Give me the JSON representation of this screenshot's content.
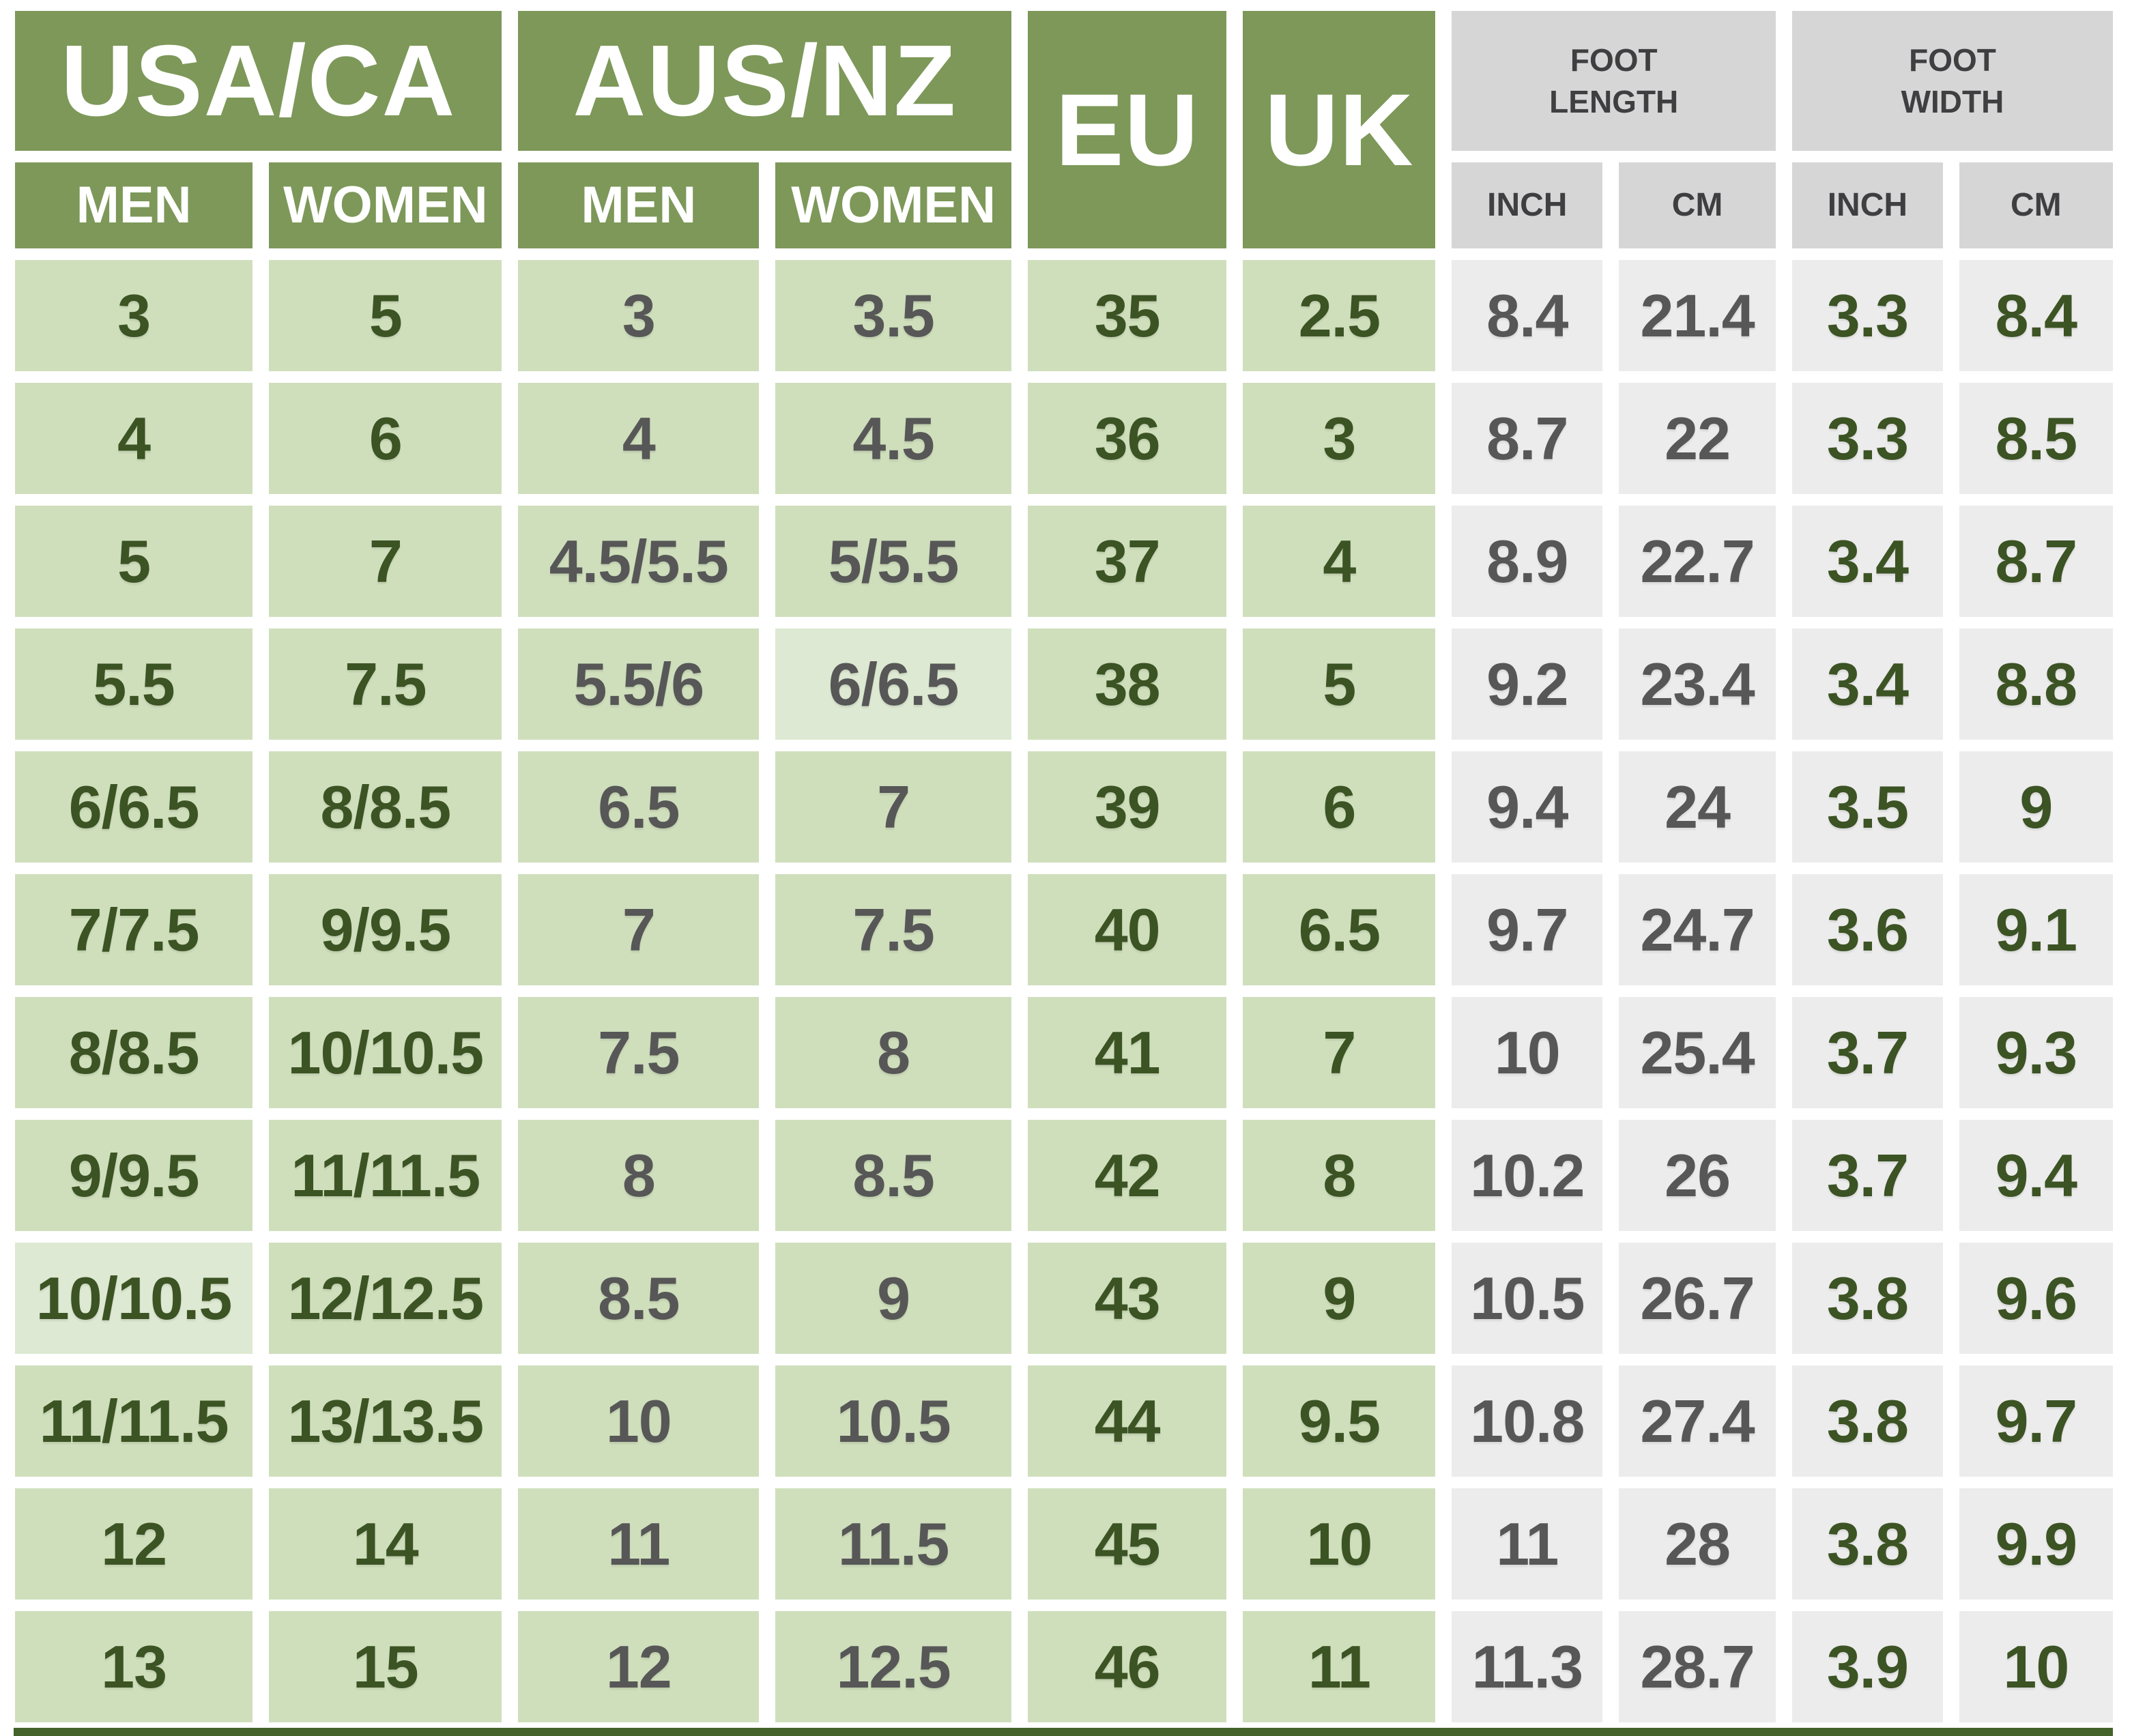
{
  "chart_data": {
    "type": "table",
    "title": "",
    "column_groups": [
      {
        "label": "USA/CA",
        "columns": [
          "MEN",
          "WOMEN"
        ]
      },
      {
        "label": "AUS/NZ",
        "columns": [
          "MEN",
          "WOMEN"
        ]
      },
      {
        "label": "EU",
        "columns": []
      },
      {
        "label": "UK",
        "columns": []
      },
      {
        "label": "FOOT LENGTH",
        "columns": [
          "INCH",
          "CM"
        ]
      },
      {
        "label": "FOOT WIDTH",
        "columns": [
          "INCH",
          "CM"
        ]
      }
    ],
    "flat_columns": [
      "USA/CA MEN",
      "USA/CA WOMEN",
      "AUS/NZ MEN",
      "AUS/NZ WOMEN",
      "EU",
      "UK",
      "FOOT LENGTH INCH",
      "FOOT LENGTH CM",
      "FOOT WIDTH INCH",
      "FOOT WIDTH CM"
    ],
    "rows": [
      [
        "3",
        "5",
        "3",
        "3.5",
        "35",
        "2.5",
        "8.4",
        "21.4",
        "3.3",
        "8.4"
      ],
      [
        "4",
        "6",
        "4",
        "4.5",
        "36",
        "3",
        "8.7",
        "22",
        "3.3",
        "8.5"
      ],
      [
        "5",
        "7",
        "4.5/5.5",
        "5/5.5",
        "37",
        "4",
        "8.9",
        "22.7",
        "3.4",
        "8.7"
      ],
      [
        "5.5",
        "7.5",
        "5.5/6",
        "6/6.5",
        "38",
        "5",
        "9.2",
        "23.4",
        "3.4",
        "8.8"
      ],
      [
        "6/6.5",
        "8/8.5",
        "6.5",
        "7",
        "39",
        "6",
        "9.4",
        "24",
        "3.5",
        "9"
      ],
      [
        "7/7.5",
        "9/9.5",
        "7",
        "7.5",
        "40",
        "6.5",
        "9.7",
        "24.7",
        "3.6",
        "9.1"
      ],
      [
        "8/8.5",
        "10/10.5",
        "7.5",
        "8",
        "41",
        "7",
        "10",
        "25.4",
        "3.7",
        "9.3"
      ],
      [
        "9/9.5",
        "11/11.5",
        "8",
        "8.5",
        "42",
        "8",
        "10.2",
        "26",
        "3.7",
        "9.4"
      ],
      [
        "10/10.5",
        "12/12.5",
        "8.5",
        "9",
        "43",
        "9",
        "10.5",
        "26.7",
        "3.8",
        "9.6"
      ],
      [
        "11/11.5",
        "13/13.5",
        "10",
        "10.5",
        "44",
        "9.5",
        "10.8",
        "27.4",
        "3.8",
        "9.7"
      ],
      [
        "12",
        "14",
        "11",
        "11.5",
        "45",
        "10",
        "11",
        "28",
        "3.8",
        "9.9"
      ],
      [
        "13",
        "15",
        "12",
        "12.5",
        "46",
        "11",
        "11.3",
        "28.7",
        "3.9",
        "10"
      ]
    ]
  },
  "header": {
    "groups": [
      {
        "label": "USA/CA"
      },
      {
        "label": "AUS/NZ"
      },
      {
        "label": "EU"
      },
      {
        "label": "UK"
      },
      {
        "line1": "FOOT",
        "line2": "LENGTH"
      },
      {
        "line1": "FOOT",
        "line2": "WIDTH"
      }
    ],
    "subheaders": [
      "MEN",
      "WOMEN",
      "MEN",
      "WOMEN",
      "INCH",
      "CM",
      "INCH",
      "CM"
    ]
  },
  "style": {
    "highlight_cells": [
      [
        3,
        3
      ],
      [
        8,
        0
      ]
    ]
  },
  "colors": {
    "header_green": "#7d9859",
    "cell_green": "#cfdfbc",
    "cell_green_highlight": "#dde9d2",
    "header_gray": "#d6d6d6",
    "cell_gray": "#ececec",
    "text_dark_green": "#3c5324",
    "text_gray": "#575757",
    "subheader_text": "#3f3f41",
    "bottom_bar": "#44632a",
    "background": "#ffffff"
  }
}
